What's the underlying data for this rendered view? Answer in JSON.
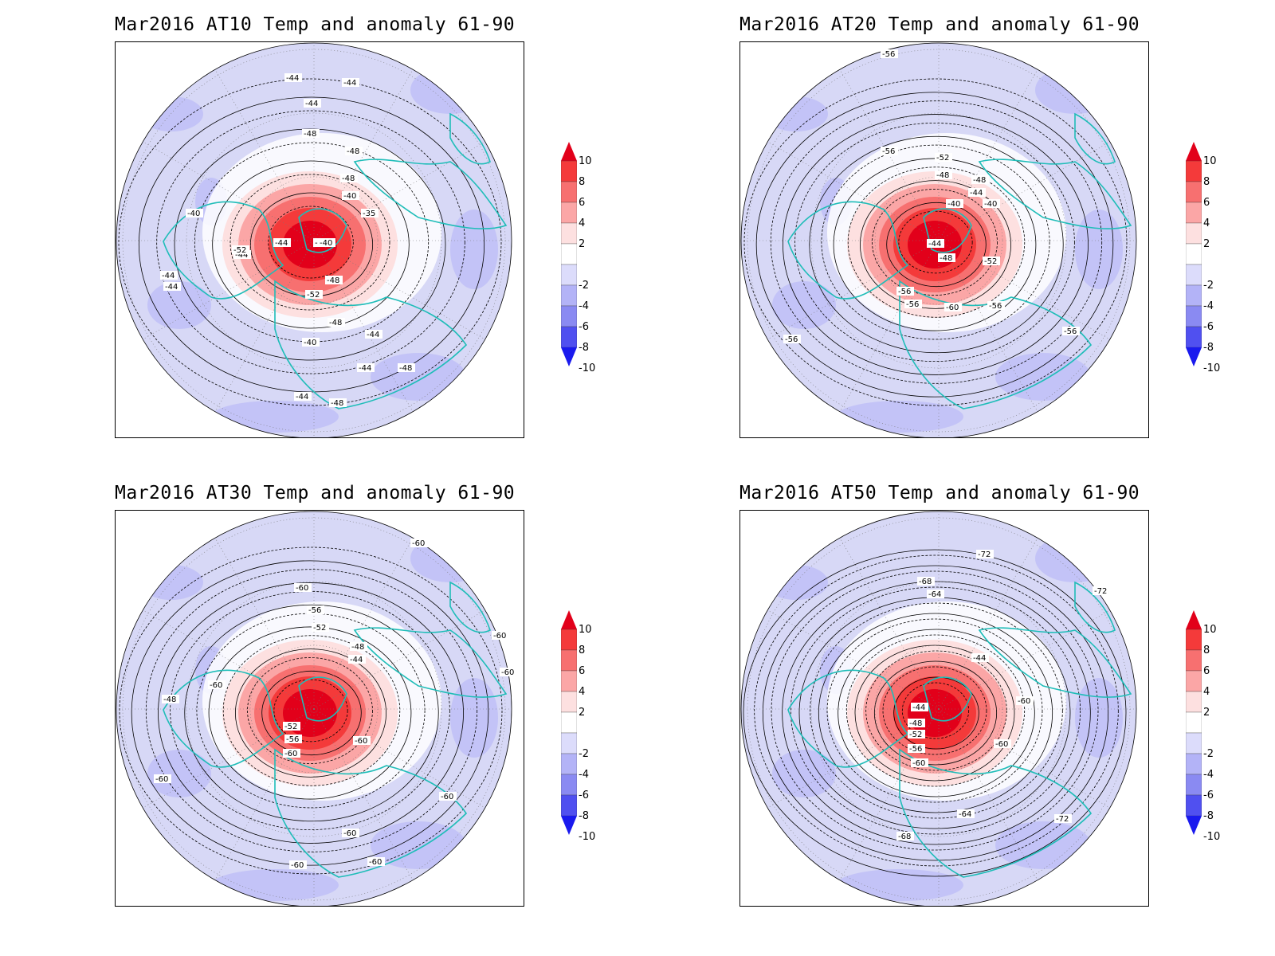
{
  "panels": [
    {
      "title": "Mar2016 AT10 Temp and anomaly 61-90",
      "contour_labels": [
        "-44",
        "-44",
        "-44",
        "-48",
        "-48",
        "-48",
        "-40",
        "-35",
        "-44",
        "-44",
        "-40",
        "-44",
        "-40",
        "-52",
        "-48",
        "-52",
        "-48",
        "-44",
        "-40",
        "-44",
        "-44",
        "-44",
        "-48",
        "-44",
        "-48"
      ]
    },
    {
      "title": "Mar2016 AT20 Temp and anomaly 61-90",
      "contour_labels": [
        "-56",
        "-56",
        "-52",
        "-48",
        "-48",
        "-44",
        "-40",
        "-40",
        "-44",
        "-48",
        "-52",
        "-56",
        "-56",
        "-60",
        "-56",
        "-56",
        "-56"
      ]
    },
    {
      "title": "Mar2016 AT30 Temp and anomaly 61-90",
      "contour_labels": [
        "-60",
        "-60",
        "-56",
        "-52",
        "-48",
        "-44",
        "-60",
        "-60",
        "-60",
        "-48",
        "-52",
        "-56",
        "-60",
        "-60",
        "-60",
        "-60",
        "-60",
        "-60",
        "-60"
      ]
    },
    {
      "title": "Mar2016 AT50 Temp and anomaly 61-90",
      "contour_labels": [
        "-72",
        "-72",
        "-68",
        "-64",
        "-44",
        "-44",
        "-48",
        "-52",
        "-56",
        "-60",
        "-60",
        "-60",
        "-64",
        "-68",
        "-72"
      ]
    }
  ],
  "colorbar": {
    "labels": [
      "10",
      "8",
      "6",
      "4",
      "2",
      "-2",
      "-4",
      "-6",
      "-8",
      "-10"
    ],
    "colors": [
      "#e2001a",
      "#f43a3a",
      "#f77070",
      "#fba6a6",
      "#fde0e0",
      "#ffffff",
      "#dcdcfb",
      "#b3b3f7",
      "#8a8af2",
      "#5050f0",
      "#1a1aee"
    ]
  },
  "colors": {
    "coastline": "#1fbdb8",
    "contour": "#000000",
    "background_anomaly": "#d7d8f6"
  }
}
